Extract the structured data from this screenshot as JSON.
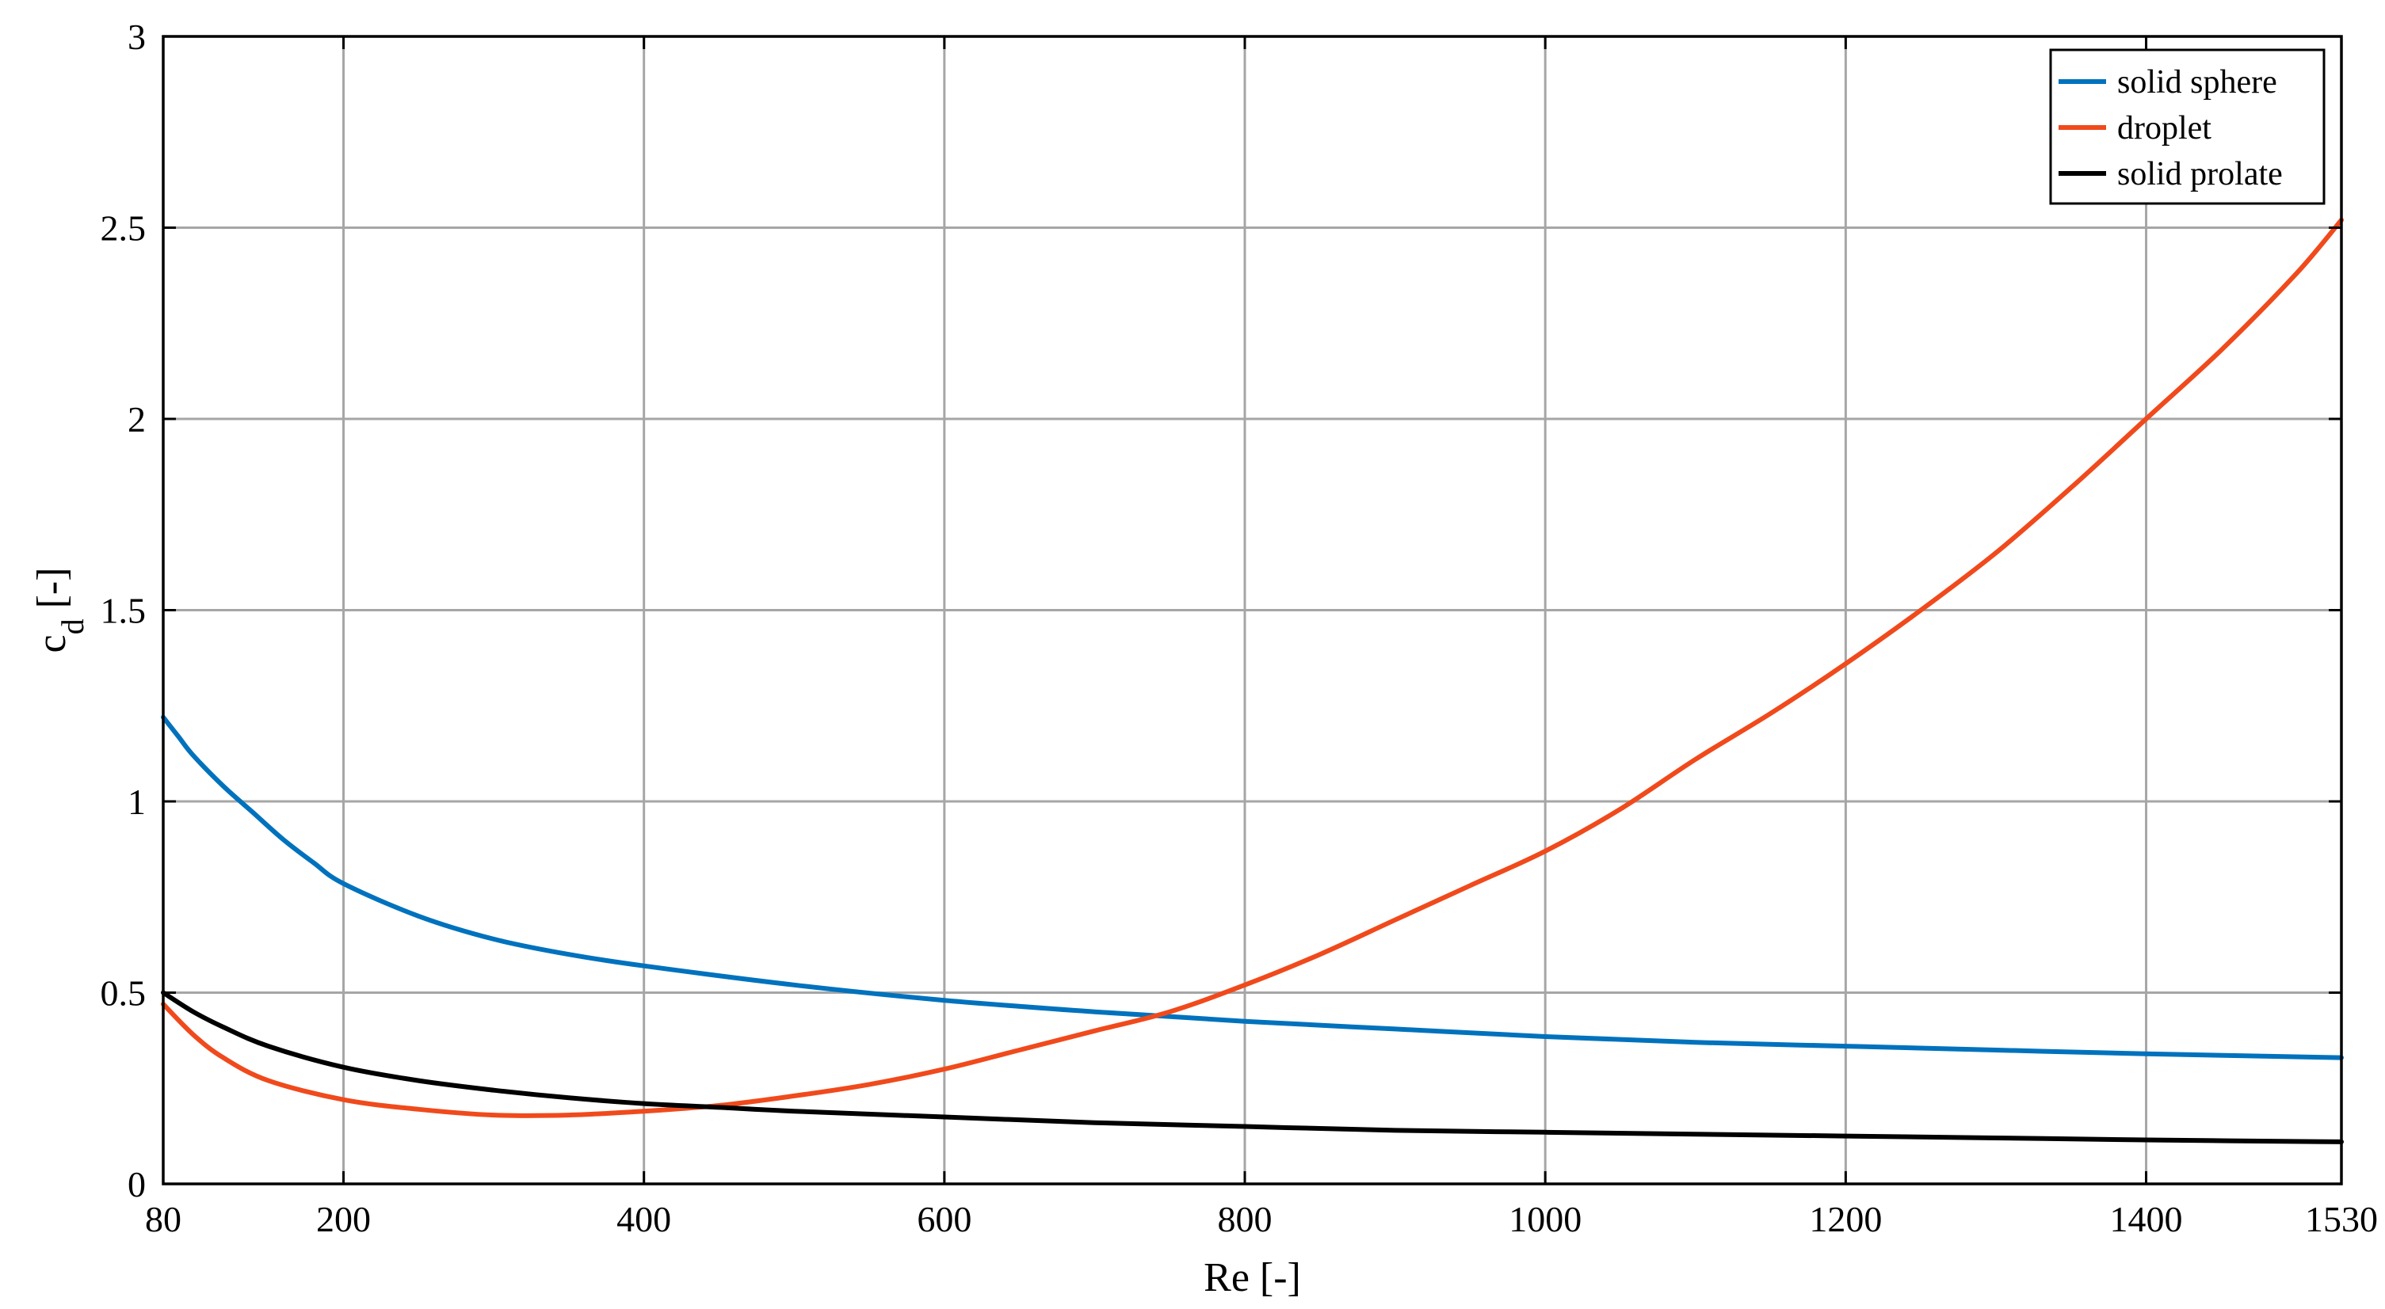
{
  "chart_data": {
    "type": "line",
    "title": "",
    "xlabel": "Re [-]",
    "ylabel": "c",
    "ylabel_subscript": "d",
    "ylabel_suffix": " [-]",
    "xlim": [
      80,
      1530
    ],
    "ylim": [
      0,
      3
    ],
    "xticks": [
      80,
      200,
      400,
      600,
      800,
      1000,
      1200,
      1400,
      1530
    ],
    "yticks": [
      0,
      0.5,
      1,
      1.5,
      2,
      2.5,
      3
    ],
    "xtick_labels": [
      "80",
      "200",
      "400",
      "600",
      "800",
      "1000",
      "1200",
      "1400",
      "1530"
    ],
    "ytick_labels": [
      "0",
      "0.5",
      "1",
      "1.5",
      "2",
      "2.5",
      "3"
    ],
    "grid": true,
    "legend_position": "top-right",
    "series": [
      {
        "name": "solid sphere",
        "color": "#0072bd",
        "x": [
          80,
          90,
          100,
          120,
          140,
          160,
          180,
          200,
          250,
          300,
          350,
          400,
          500,
          600,
          700,
          800,
          900,
          1000,
          1100,
          1200,
          1300,
          1400,
          1530
        ],
        "y": [
          1.22,
          1.17,
          1.12,
          1.04,
          0.97,
          0.9,
          0.84,
          0.785,
          0.7,
          0.64,
          0.6,
          0.57,
          0.52,
          0.48,
          0.45,
          0.425,
          0.405,
          0.385,
          0.37,
          0.36,
          0.35,
          0.34,
          0.33
        ]
      },
      {
        "name": "droplet",
        "color": "#f04a1c",
        "x": [
          80,
          100,
          120,
          150,
          200,
          250,
          300,
          350,
          400,
          450,
          500,
          550,
          600,
          650,
          700,
          750,
          800,
          850,
          900,
          950,
          1000,
          1050,
          1100,
          1150,
          1200,
          1250,
          1300,
          1350,
          1400,
          1450,
          1500,
          1530
        ],
        "y": [
          0.47,
          0.39,
          0.33,
          0.27,
          0.22,
          0.195,
          0.18,
          0.18,
          0.19,
          0.205,
          0.23,
          0.26,
          0.3,
          0.35,
          0.4,
          0.45,
          0.52,
          0.6,
          0.69,
          0.78,
          0.87,
          0.98,
          1.11,
          1.23,
          1.36,
          1.5,
          1.65,
          1.82,
          2.0,
          2.18,
          2.38,
          2.52
        ]
      },
      {
        "name": "solid prolate",
        "color": "#000000",
        "x": [
          80,
          100,
          120,
          150,
          200,
          250,
          300,
          350,
          400,
          450,
          500,
          600,
          700,
          800,
          900,
          1000,
          1100,
          1200,
          1300,
          1400,
          1530
        ],
        "y": [
          0.5,
          0.45,
          0.41,
          0.36,
          0.305,
          0.27,
          0.245,
          0.225,
          0.21,
          0.2,
          0.19,
          0.175,
          0.16,
          0.15,
          0.14,
          0.135,
          0.13,
          0.125,
          0.12,
          0.115,
          0.11
        ]
      }
    ]
  }
}
